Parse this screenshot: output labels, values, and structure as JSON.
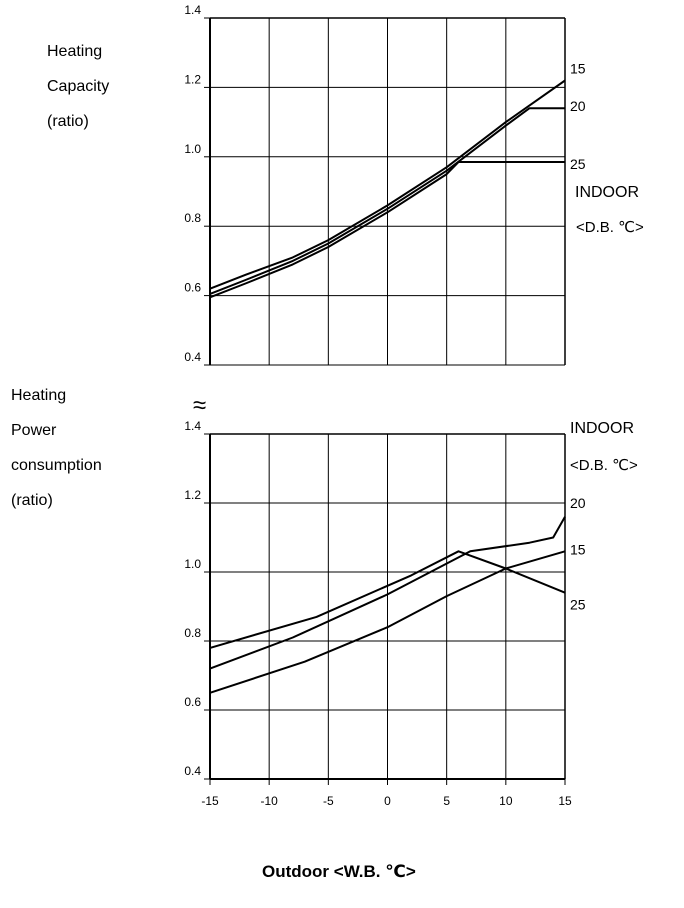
{
  "chart_data": [
    {
      "type": "line",
      "name_lines": [
        "Heating",
        "Capacity",
        "(ratio)"
      ],
      "x_ticks": [
        "-15",
        "-10",
        "-5",
        "0",
        "5",
        "10",
        "15"
      ],
      "y_ticks": [
        "1.4",
        "1.2",
        "1.0",
        "0.8",
        "0.6",
        "0.4"
      ],
      "xlim": [
        -15,
        15
      ],
      "ylim": [
        0.4,
        1.4
      ],
      "grid": true,
      "legend_title_lines": [
        "INDOOR",
        "<D.B. ℃>"
      ],
      "series": [
        {
          "name": "15",
          "x": [
            -15,
            -12,
            -8,
            -5,
            0,
            5,
            10,
            15
          ],
          "y": [
            0.62,
            0.66,
            0.71,
            0.76,
            0.86,
            0.97,
            1.1,
            1.22
          ]
        },
        {
          "name": "20",
          "x": [
            -15,
            -12,
            -8,
            -5,
            0,
            5,
            10,
            12,
            15
          ],
          "y": [
            0.605,
            0.645,
            0.7,
            0.75,
            0.85,
            0.96,
            1.09,
            1.14,
            1.14
          ]
        },
        {
          "name": "25",
          "x": [
            -15,
            -12,
            -8,
            -5,
            0,
            5,
            6,
            15
          ],
          "y": [
            0.595,
            0.635,
            0.69,
            0.74,
            0.84,
            0.95,
            0.985,
            0.985
          ]
        }
      ]
    },
    {
      "type": "line",
      "name_lines": [
        "Heating",
        "Power",
        "consumption",
        "(ratio)"
      ],
      "x_ticks": [
        "-15",
        "-10",
        "-5",
        "0",
        "5",
        "10",
        "15"
      ],
      "y_ticks": [
        "1.4",
        "1.2",
        "1.0",
        "0.8",
        "0.6",
        "0.4"
      ],
      "xlim": [
        -15,
        15
      ],
      "ylim": [
        0.4,
        1.4
      ],
      "grid": true,
      "legend_title_lines": [
        "INDOOR",
        "<D.B. ℃>"
      ],
      "series": [
        {
          "name": "20",
          "x": [
            -15,
            -8,
            0,
            7,
            12,
            14,
            15
          ],
          "y": [
            0.72,
            0.81,
            0.935,
            1.06,
            1.085,
            1.1,
            1.16
          ]
        },
        {
          "name": "15",
          "x": [
            -15,
            -7,
            0,
            5,
            10,
            15
          ],
          "y": [
            0.65,
            0.74,
            0.84,
            0.93,
            1.01,
            1.06
          ]
        },
        {
          "name": "25",
          "x": [
            -15,
            -6,
            2,
            6,
            10,
            15
          ],
          "y": [
            0.78,
            0.87,
            0.99,
            1.06,
            1.01,
            0.94
          ]
        }
      ]
    }
  ],
  "x_axis_title": "Outdoor <W.B. ℃>",
  "break_symbol": "≈"
}
